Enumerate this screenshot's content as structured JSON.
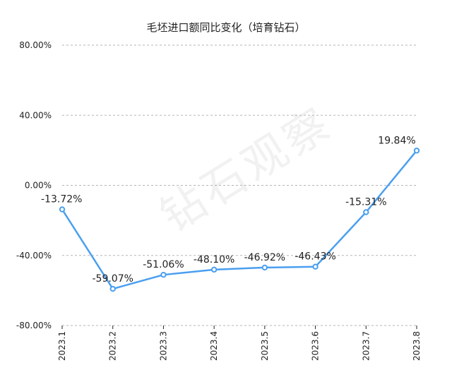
{
  "chart_data": {
    "type": "line",
    "title": "毛坯进口额同比变化（培育钻石）",
    "watermark": "钻石观察",
    "categories": [
      "2023.1",
      "2023.2",
      "2023.3",
      "2023.4",
      "2023.5",
      "2023.6",
      "2023.7",
      "2023.8"
    ],
    "series": [
      {
        "values": [
          -13.72,
          -59.07,
          -51.06,
          -48.1,
          -46.92,
          -46.43,
          -15.31,
          19.84
        ],
        "labels": [
          "-13.72%",
          "-59.07%",
          "-51.06%",
          "-48.10%",
          "-46.92%",
          "-46.43%",
          "-15.31%",
          "19.84%"
        ],
        "color": "#4a9ff0"
      }
    ],
    "ylim": [
      -80,
      80
    ],
    "yticks": [
      80,
      40,
      0,
      -40,
      -80
    ],
    "ytick_labels": [
      "80.00%",
      "40.00%",
      "0.00%",
      "-40.00%",
      "-80.00%"
    ],
    "grid": true,
    "xlabel": "",
    "ylabel": ""
  }
}
